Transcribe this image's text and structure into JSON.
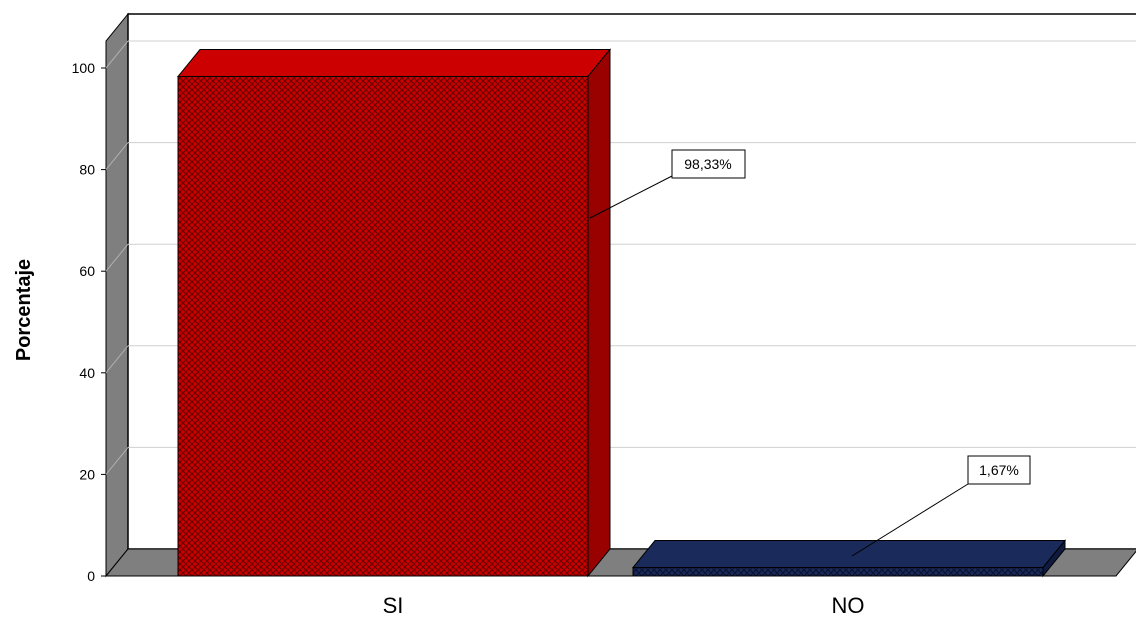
{
  "chart_data": {
    "type": "bar",
    "title": "",
    "xlabel": "",
    "ylabel": "Porcentaje",
    "ylim": [
      0,
      100
    ],
    "yticks": [
      "0",
      "20",
      "40",
      "60",
      "80",
      "100"
    ],
    "categories": [
      "SI",
      "NO"
    ],
    "values": [
      98.33,
      1.67
    ],
    "data_labels": [
      "98,33%",
      "1,67%"
    ],
    "colors": [
      "#cc0000",
      "#1a2a5a"
    ],
    "grid": true,
    "three_d": true,
    "legend": "none"
  }
}
